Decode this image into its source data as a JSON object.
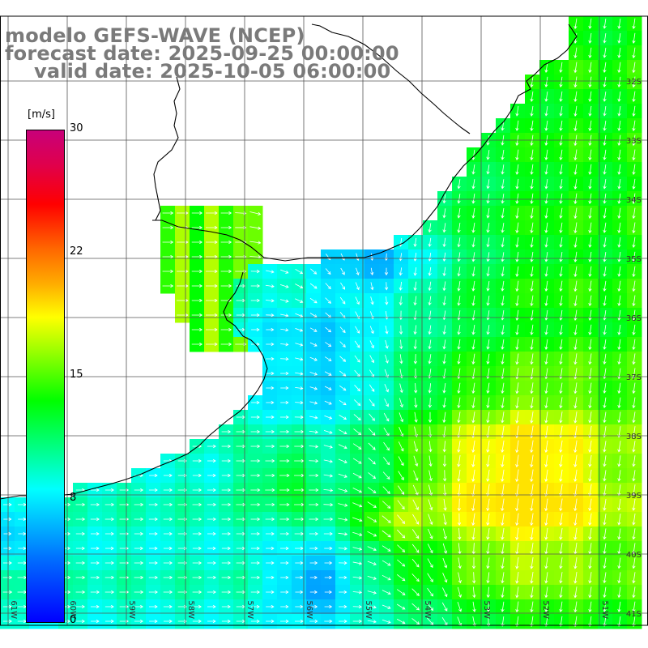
{
  "title": {
    "line1": "modelo GEFS-WAVE (NCEP)",
    "line2": "forecast date: 2025-09-25 00:00:00",
    "line3": "valid date: 2025-10-05 06:00:00"
  },
  "colorbar": {
    "unit": "[m/s]",
    "ticks": [
      "30",
      "22",
      "15",
      "8",
      "0"
    ],
    "min": 0,
    "max": 30,
    "colors": [
      "#0000ff",
      "#00ffff",
      "#00ff00",
      "#ffff00",
      "#ff0000",
      "#c8007a"
    ]
  },
  "lat_labels": [
    "32S",
    "33S",
    "34S",
    "35S",
    "36S",
    "37S",
    "38S",
    "39S",
    "40S",
    "41S"
  ],
  "lon_labels": [
    "61W",
    "60W",
    "59W",
    "58W",
    "57W",
    "56W",
    "55W",
    "54W",
    "53W",
    "52W",
    "51W"
  ],
  "colors": {
    "land": "#ffffff",
    "coast": "#000000",
    "grid": "#555555",
    "arrow": "#ffffff",
    "title": "#7a7a7a"
  }
}
